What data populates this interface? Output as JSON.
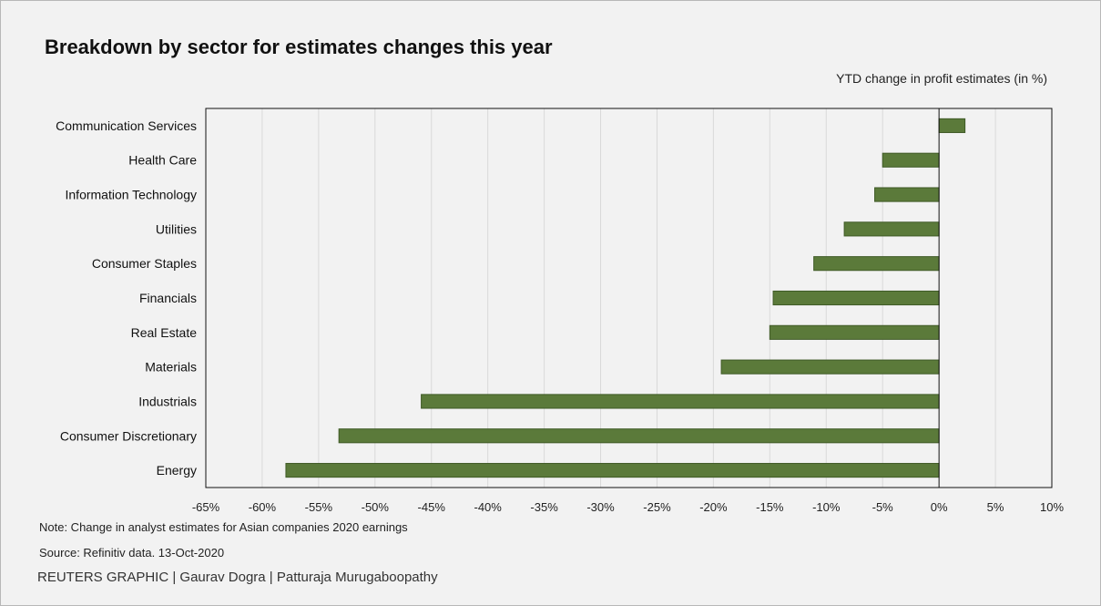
{
  "title": "Breakdown by sector for estimates changes this year",
  "note": "Note: Change in analyst estimates for Asian companies 2020 earnings",
  "source": "Source: Refinitiv data. 13-Oct-2020",
  "credit": "REUTERS GRAPHIC | Gaurav Dogra | Patturaja Murugaboopathy",
  "colors": {
    "bar": "#5b7a3a",
    "bar_border": "#3f5a26",
    "grid": "#d9d9d9",
    "axis": "#111111",
    "background": "#f2f2f2"
  },
  "chart_data": {
    "type": "bar",
    "orientation": "horizontal",
    "xlabel": "YTD change in profit estimates (in %)",
    "ylabel": "",
    "xlim": [
      -65,
      10
    ],
    "x_ticks": [
      -65,
      -60,
      -55,
      -50,
      -45,
      -40,
      -35,
      -30,
      -25,
      -20,
      -15,
      -10,
      -5,
      0,
      5,
      10
    ],
    "x_tick_labels": [
      "-65%",
      "-60%",
      "-55%",
      "-50%",
      "-45%",
      "-40%",
      "-35%",
      "-30%",
      "-25%",
      "-20%",
      "-15%",
      "-10%",
      "-5%",
      "0%",
      "5%",
      "10%"
    ],
    "grid": "vertical",
    "legend": "none",
    "categories": [
      "Communication Services",
      "Health Care",
      "Information Technology",
      "Utilities",
      "Consumer Staples",
      "Financials",
      "Real Estate",
      "Materials",
      "Industrials",
      "Consumer Discretionary",
      "Energy"
    ],
    "values": [
      2.3,
      -5.0,
      -5.7,
      -8.4,
      -11.1,
      -14.7,
      -15.0,
      -19.3,
      -45.9,
      -53.2,
      -57.9
    ]
  }
}
